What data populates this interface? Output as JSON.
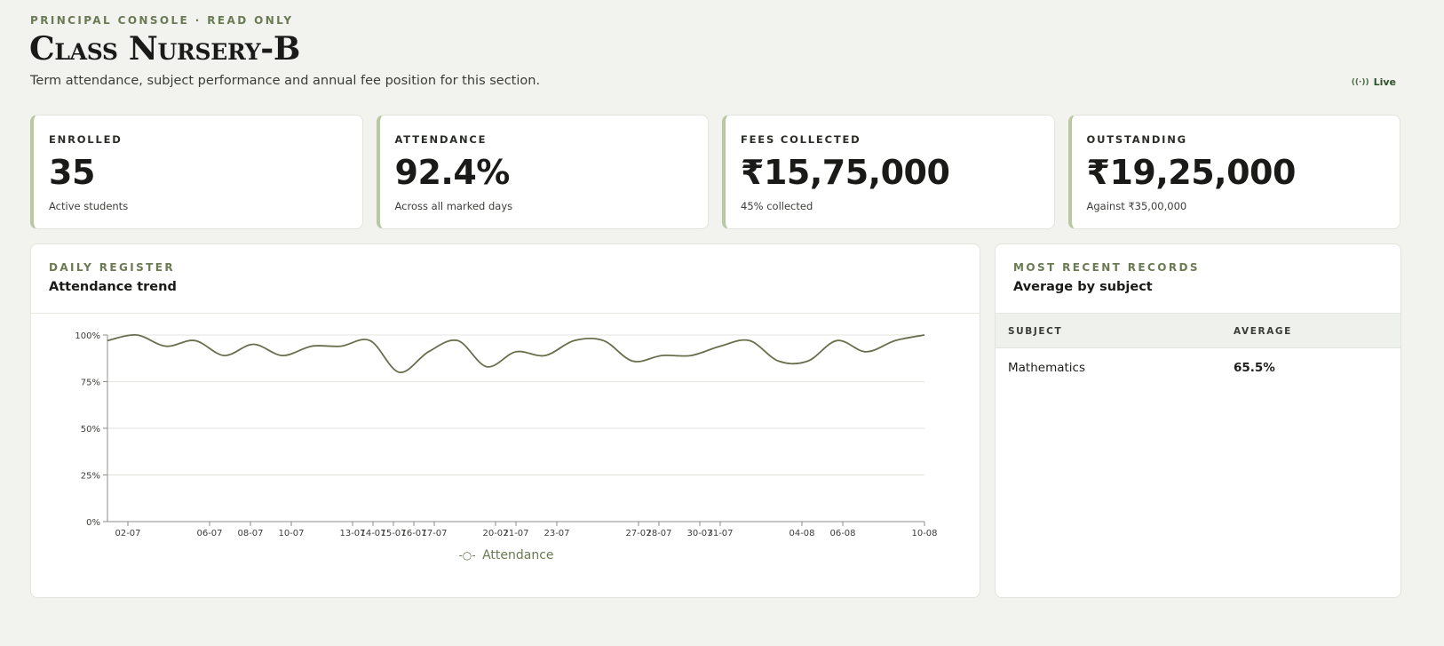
{
  "header": {
    "eyebrow": "PRINCIPAL CONSOLE · READ ONLY",
    "title": "Class Nursery-B",
    "subtitle": "Term attendance, subject performance and annual fee position for this section.",
    "live_label": "Live",
    "live_icon": "broadcast-icon"
  },
  "kpis": [
    {
      "label": "ENROLLED",
      "value": "35",
      "note": "Active students"
    },
    {
      "label": "ATTENDANCE",
      "value": "92.4%",
      "note": "Across all marked days"
    },
    {
      "label": "FEES COLLECTED",
      "value": "₹15,75,000",
      "note": "45% collected"
    },
    {
      "label": "OUTSTANDING",
      "value": "₹19,25,000",
      "note": "Against ₹35,00,000"
    }
  ],
  "attendance_panel": {
    "eyebrow": "DAILY REGISTER",
    "title": "Attendance trend"
  },
  "subject_panel": {
    "eyebrow": "MOST RECENT RECORDS",
    "title": "Average by subject",
    "columns": [
      "SUBJECT",
      "AVERAGE"
    ],
    "rows": [
      {
        "subject": "Mathematics",
        "average": "65.5%"
      }
    ]
  },
  "colors": {
    "accent": "#6a7a52",
    "line": "#6b6e4c",
    "card_border_accent": "#b9c7a3"
  },
  "chart_data": {
    "type": "line",
    "ylim": [
      0,
      100
    ],
    "yticks": [
      "0%",
      "25%",
      "50%",
      "75%",
      "100%"
    ],
    "ytick_values": [
      0,
      25,
      50,
      75,
      100
    ],
    "xtick_labels": [
      "02-07",
      "06-07",
      "08-07",
      "10-07",
      "13-07",
      "14-07",
      "15-07",
      "16-07",
      "17-07",
      "20-07",
      "21-07",
      "23-07",
      "27-07",
      "28-07",
      "30-07",
      "31-07",
      "04-08",
      "06-08",
      "10-08"
    ],
    "legend": "Attendance",
    "legend_icon": "line-marker-icon",
    "series": [
      {
        "name": "Attendance",
        "values": [
          97,
          100,
          94,
          97,
          89,
          95,
          89,
          94,
          94,
          97,
          80,
          91,
          97,
          83,
          91,
          89,
          97,
          97,
          86,
          89,
          89,
          94,
          97,
          86,
          86,
          97,
          91,
          97,
          100
        ]
      }
    ]
  }
}
